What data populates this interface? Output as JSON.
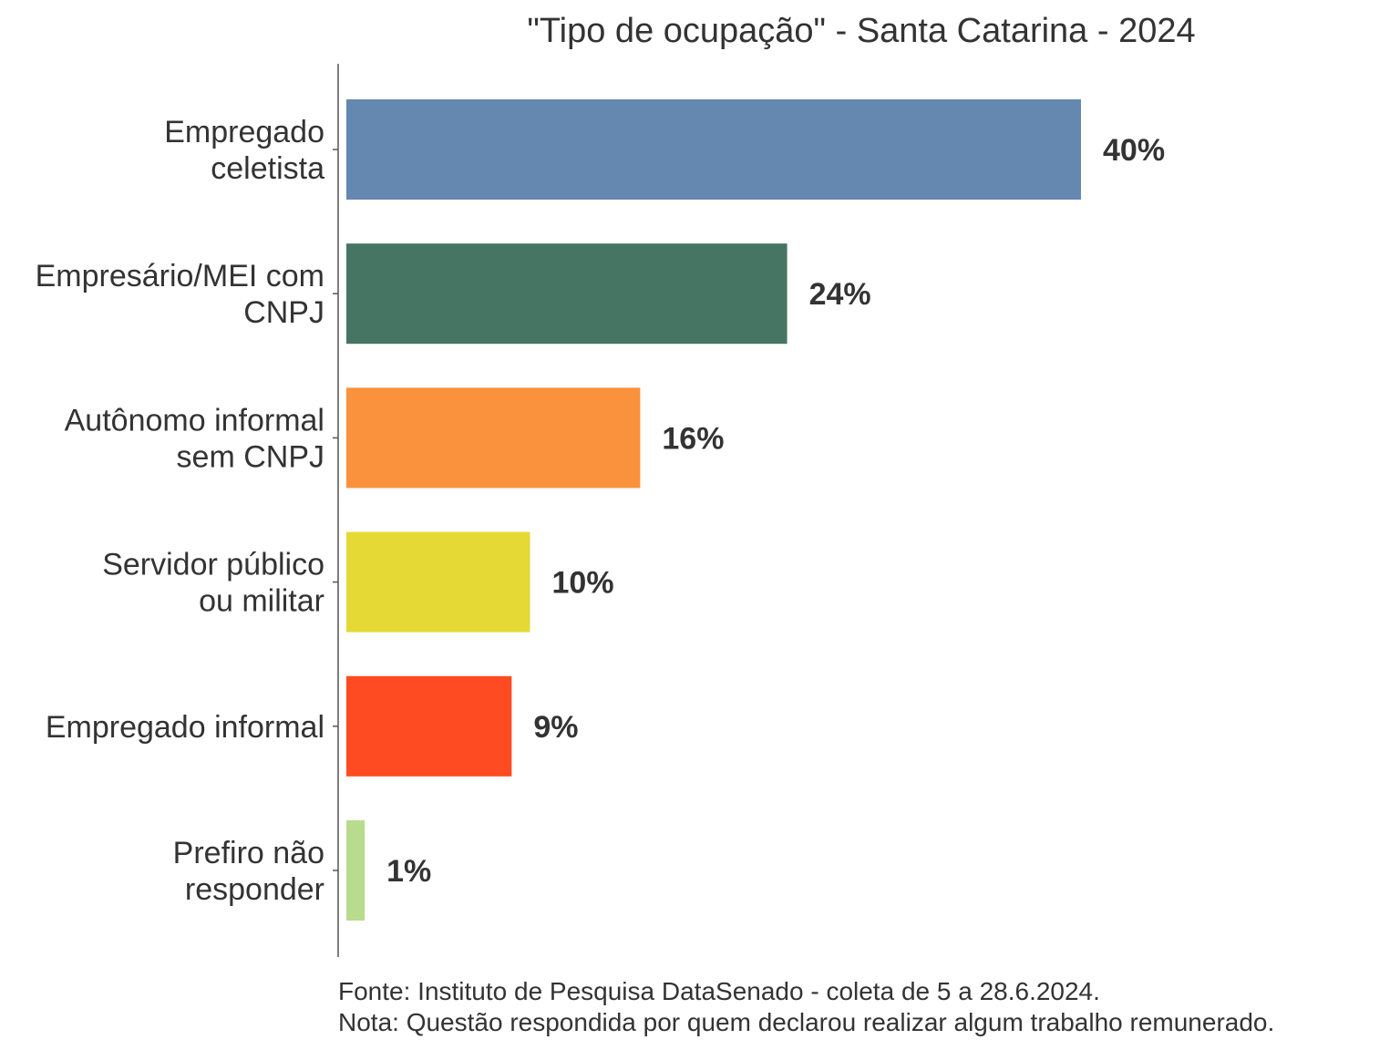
{
  "chart_data": {
    "type": "bar",
    "orientation": "horizontal",
    "title": "\"Tipo de ocupação\" - Santa Catarina - 2024",
    "categories": [
      [
        "Empregado",
        "celetista"
      ],
      [
        "Empresário/MEI com",
        "CNPJ"
      ],
      [
        "Autônomo informal",
        "sem CNPJ"
      ],
      [
        "Servidor público",
        "ou militar"
      ],
      [
        "Empregado informal"
      ],
      [
        "Prefiro não",
        "responder"
      ]
    ],
    "values": [
      40,
      24,
      16,
      10,
      9,
      1
    ],
    "value_labels": [
      "40%",
      "24%",
      "16%",
      "10%",
      "9%",
      "1%"
    ],
    "colors": [
      "#6588b0",
      "#467563",
      "#fa913c",
      "#e5d936",
      "#ff4b21",
      "#b8dc8e"
    ],
    "xlim": [
      0,
      45
    ],
    "grid": false,
    "legend": "none",
    "source": "Fonte: Instituto de Pesquisa DataSenado - coleta de 5 a 28.6.2024.",
    "note": "Nota: Questão respondida por quem declarou realizar algum trabalho remunerado."
  }
}
